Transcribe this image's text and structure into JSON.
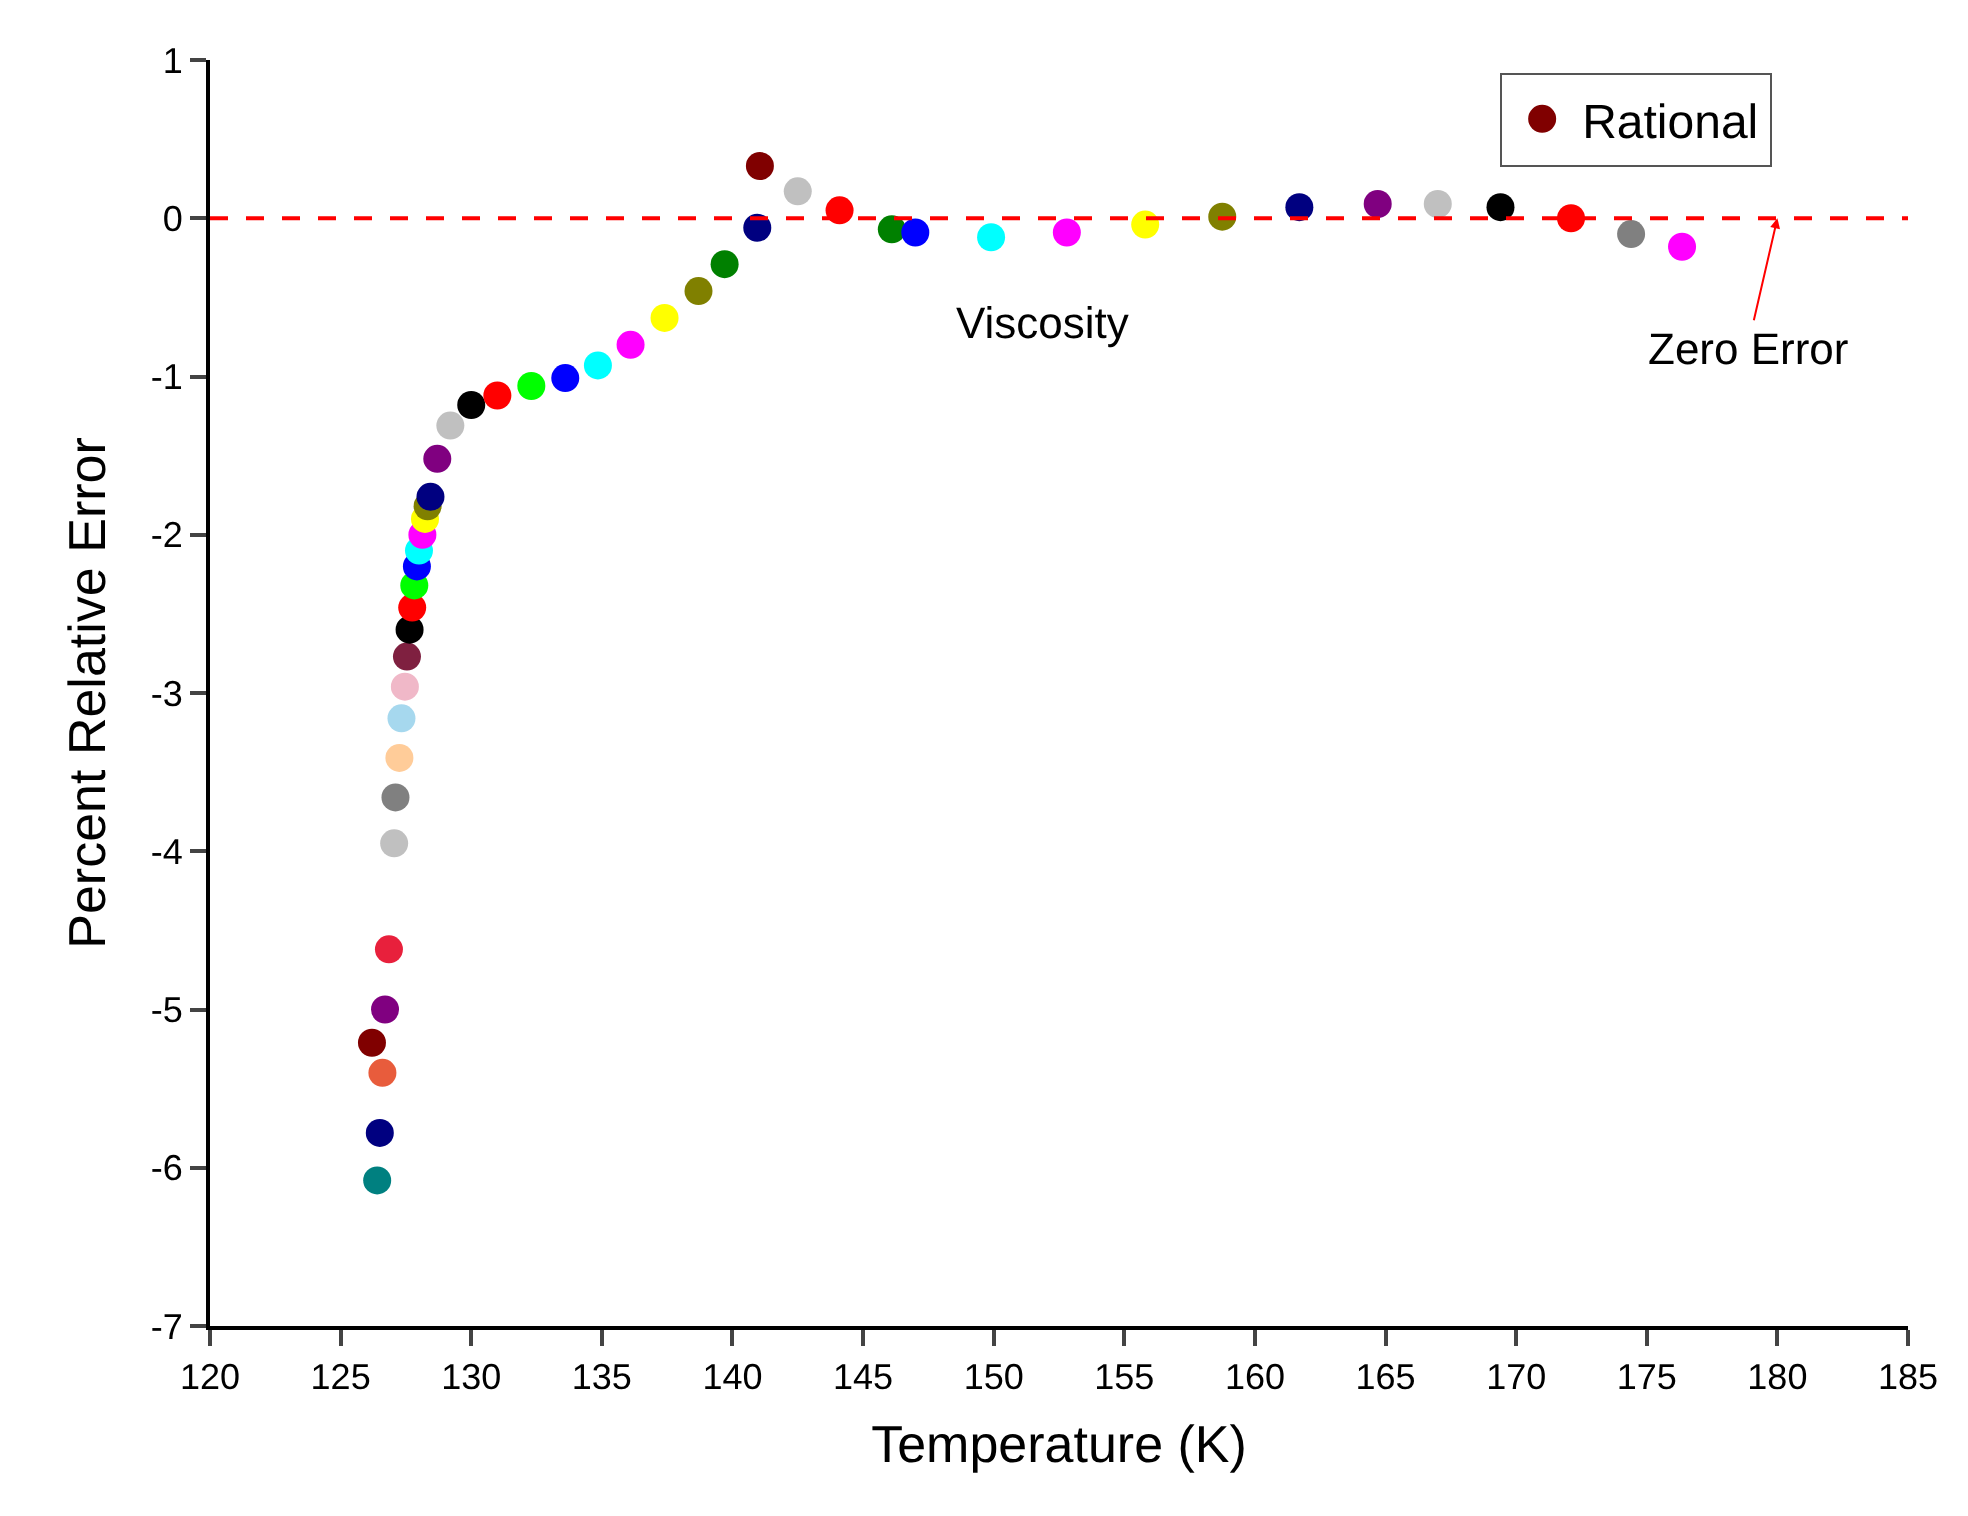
{
  "chart_data": {
    "type": "scatter",
    "xlabel": "Temperature (K)",
    "ylabel": "Percent Relative Error",
    "xlim": [
      120,
      185
    ],
    "xticks": [
      120,
      125,
      130,
      135,
      140,
      145,
      150,
      155,
      160,
      165,
      170,
      175,
      180,
      185
    ],
    "ylim": [
      -7,
      1
    ],
    "yticks": [
      -7,
      -6,
      -5,
      -4,
      -3,
      -2,
      -1,
      0,
      1
    ],
    "legend": "top right",
    "ref_lines": [
      {
        "axis": "y",
        "value": 0,
        "color": "#ff0000",
        "line_style": "dashed"
      }
    ],
    "annotations": [
      "Viscosity",
      {
        "text": "Zero Error",
        "x": 180,
        "y": 0
      }
    ],
    "series": [
      {
        "name": "Rational",
        "color": "#800000",
        "x": [
          126.4,
          126.5,
          126.6,
          126.2,
          126.7,
          126.85,
          127.05,
          127.1,
          127.25,
          127.33,
          127.46,
          127.54,
          127.64,
          127.74,
          127.82,
          127.92,
          128.0,
          128.13,
          128.23,
          128.33,
          128.44,
          128.7,
          129.2,
          130.0,
          131.0,
          132.3,
          133.6,
          134.85,
          136.1,
          137.4,
          138.7,
          139.7,
          140.95,
          141.05,
          142.5,
          144.1,
          146.1,
          147.0,
          149.9,
          152.8,
          155.8,
          158.75,
          161.7,
          164.7,
          167.0,
          169.4,
          172.1,
          174.4,
          176.35
        ],
        "values": [
          -6.08,
          -5.78,
          -5.4,
          -5.21,
          -5.0,
          -4.62,
          -3.95,
          -3.66,
          -3.41,
          -3.16,
          -2.96,
          -2.77,
          -2.6,
          -2.46,
          -2.32,
          -2.2,
          -2.1,
          -2.0,
          -1.9,
          -1.82,
          -1.76,
          -1.52,
          -1.31,
          -1.18,
          -1.12,
          -1.06,
          -1.01,
          -0.93,
          -0.8,
          -0.63,
          -0.46,
          -0.29,
          -0.06,
          0.33,
          0.17,
          0.05,
          -0.07,
          -0.09,
          -0.12,
          -0.09,
          -0.04,
          0.01,
          0.07,
          0.09,
          0.09,
          0.07,
          0.0,
          -0.1,
          -0.18
        ],
        "colors": [
          "#008080",
          "#000080",
          "#e85c3c",
          "#800000",
          "#800080",
          "#e8203c",
          "#c0c0c0",
          "#808080",
          "#ffcc99",
          "#a6d8ee",
          "#f0b8c8",
          "#7f2040",
          "#000000",
          "#ff0000",
          "#00ff00",
          "#0000ff",
          "#00ffff",
          "#ff00ff",
          "#ffff00",
          "#808000",
          "#000080",
          "#800080",
          "#c0c0c0",
          "#000000",
          "#ff0000",
          "#00ff00",
          "#0000ff",
          "#00ffff",
          "#ff00ff",
          "#ffff00",
          "#808000",
          "#008000",
          "#000080",
          "#800000",
          "#c0c0c0",
          "#ff0000",
          "#008000",
          "#0000ff",
          "#00ffff",
          "#ff00ff",
          "#ffff00",
          "#808000",
          "#000080",
          "#800080",
          "#c0c0c0",
          "#000000",
          "#ff0000",
          "#808080",
          "#ff00ff"
        ]
      }
    ]
  }
}
